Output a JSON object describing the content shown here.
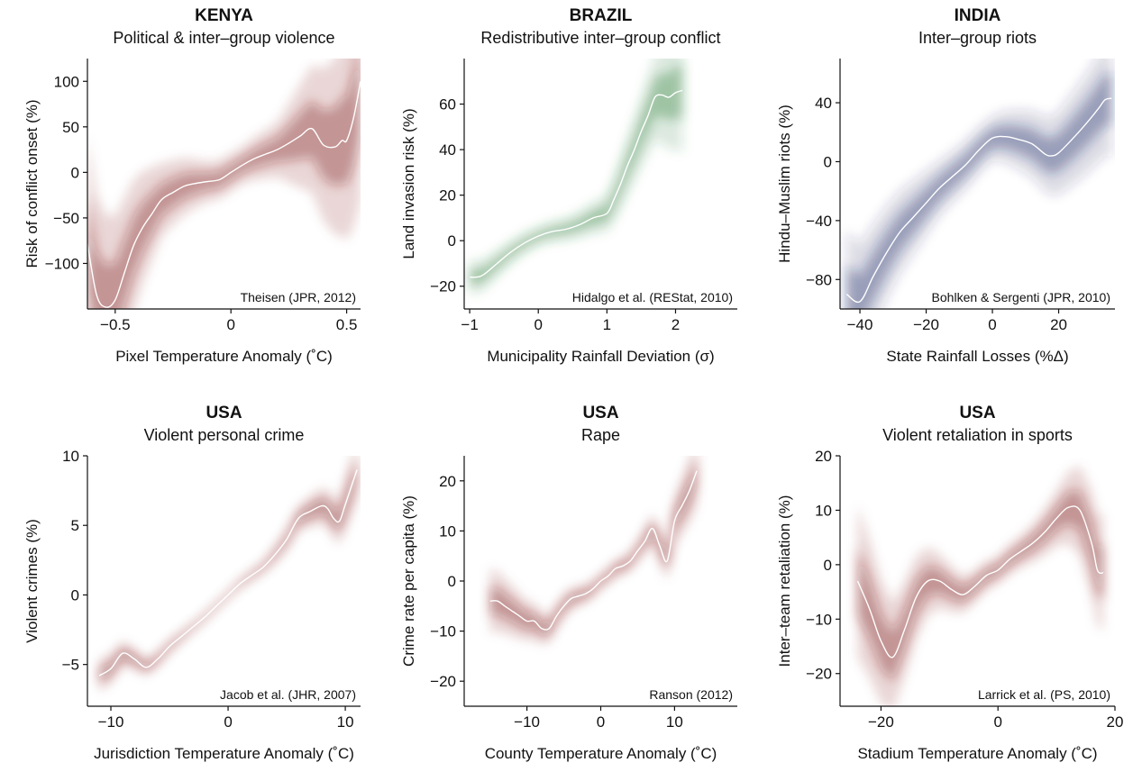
{
  "chart_data": [
    {
      "type": "line",
      "title": "KENYA",
      "subtitle": "Political & inter–group violence",
      "xlabel": "Pixel Temperature Anomaly (˚C)",
      "ylabel": "Risk of conflict onset (%)",
      "xlim": [
        -0.62,
        0.56
      ],
      "ylim": [
        -150,
        125
      ],
      "xticks": [
        -0.5,
        0,
        0.5
      ],
      "xtick_labels": [
        "−0.5",
        "0",
        "0.5"
      ],
      "yticks": [
        -100,
        -50,
        0,
        50,
        100
      ],
      "ytick_labels": [
        "−100",
        "−50",
        "0",
        "50",
        "100"
      ],
      "source": "Theisen (JPR, 2012)",
      "color": "#7a1a1a",
      "band_halfwidth": [
        [
          -0.62,
          120
        ],
        [
          -0.45,
          80
        ],
        [
          -0.3,
          40
        ],
        [
          -0.1,
          22
        ],
        [
          0.05,
          20
        ],
        [
          0.2,
          30
        ],
        [
          0.35,
          70
        ],
        [
          0.5,
          110
        ],
        [
          0.56,
          130
        ]
      ],
      "series": [
        {
          "x": [
            -0.62,
            -0.58,
            -0.54,
            -0.5,
            -0.46,
            -0.42,
            -0.38,
            -0.34,
            -0.3,
            -0.25,
            -0.2,
            -0.15,
            -0.1,
            -0.05,
            0,
            0.05,
            0.1,
            0.15,
            0.2,
            0.25,
            0.3,
            0.35,
            0.4,
            0.45,
            0.48,
            0.5,
            0.53,
            0.56
          ],
          "y": [
            -78,
            -135,
            -148,
            -140,
            -110,
            -80,
            -60,
            -45,
            -30,
            -22,
            -15,
            -12,
            -10,
            -8,
            0,
            8,
            15,
            20,
            25,
            32,
            40,
            48,
            30,
            28,
            35,
            35,
            60,
            100
          ]
        }
      ]
    },
    {
      "type": "line",
      "title": "BRAZIL",
      "subtitle": "Redistributive inter–group conflict",
      "xlabel": "Municipality Rainfall Deviation (σ)",
      "ylabel": "Land invasion risk (%)",
      "xlim": [
        -1.08,
        2.9
      ],
      "ylim": [
        -30,
        80
      ],
      "xticks": [
        -1,
        0,
        1,
        2
      ],
      "xtick_labels": [
        "−1",
        "0",
        "1",
        "2"
      ],
      "yticks": [
        -20,
        0,
        20,
        40,
        60
      ],
      "ytick_labels": [
        "−20",
        "0",
        "20",
        "40",
        "60"
      ],
      "source": "Hidalgo et al. (REStat, 2010)",
      "color": "#2d7a35",
      "band_halfwidth": [
        [
          -1.08,
          8
        ],
        [
          -0.5,
          5
        ],
        [
          0,
          4
        ],
        [
          0.5,
          5
        ],
        [
          1,
          8
        ],
        [
          1.5,
          15
        ],
        [
          2,
          25
        ],
        [
          2.2,
          30
        ]
      ],
      "series": [
        {
          "x": [
            -1.0,
            -0.9,
            -0.8,
            -0.6,
            -0.4,
            -0.2,
            0,
            0.2,
            0.4,
            0.6,
            0.8,
            1.0,
            1.1,
            1.2,
            1.3,
            1.4,
            1.5,
            1.6,
            1.7,
            1.8,
            1.9,
            2.0,
            2.1
          ],
          "y": [
            -16,
            -16,
            -15,
            -10,
            -5,
            -1,
            2,
            4,
            5,
            7,
            10,
            12,
            18,
            25,
            33,
            40,
            48,
            55,
            63,
            64,
            63,
            65,
            66
          ]
        }
      ]
    },
    {
      "type": "line",
      "title": "INDIA",
      "subtitle": "Inter–group riots",
      "xlabel": "State Rainfall Losses (%Δ)",
      "ylabel": "Hindu–Muslim riots (%)",
      "xlim": [
        -46,
        37
      ],
      "ylim": [
        -100,
        70
      ],
      "xticks": [
        -40,
        -20,
        0,
        20
      ],
      "xtick_labels": [
        "−40",
        "−20",
        "0",
        "20"
      ],
      "yticks": [
        -80,
        -40,
        0,
        40
      ],
      "ytick_labels": [
        "−80",
        "−40",
        "0",
        "40"
      ],
      "source": "Bohlken & Sergenti (JPR, 2010)",
      "color": "#1f2a66",
      "band_halfwidth": [
        [
          -46,
          45
        ],
        [
          -30,
          30
        ],
        [
          -15,
          18
        ],
        [
          0,
          15
        ],
        [
          15,
          25
        ],
        [
          25,
          32
        ],
        [
          37,
          40
        ]
      ],
      "series": [
        {
          "x": [
            -44,
            -40,
            -36,
            -32,
            -28,
            -24,
            -20,
            -16,
            -12,
            -8,
            -4,
            0,
            4,
            8,
            12,
            16,
            18,
            20,
            24,
            28,
            32,
            34,
            36
          ],
          "y": [
            -90,
            -95,
            -78,
            -62,
            -48,
            -38,
            -28,
            -18,
            -10,
            -2,
            8,
            16,
            17,
            15,
            12,
            5,
            4,
            6,
            15,
            25,
            36,
            42,
            43
          ]
        }
      ]
    },
    {
      "type": "line",
      "title": "USA",
      "subtitle": "Violent personal crime",
      "xlabel": "Jurisdiction Temperature Anomaly (˚C)",
      "ylabel": "Violent crimes (%)",
      "xlim": [
        -12,
        11.3
      ],
      "ylim": [
        -8,
        10
      ],
      "xticks": [
        -10,
        0,
        10
      ],
      "xtick_labels": [
        "−10",
        "0",
        "10"
      ],
      "yticks": [
        -5,
        0,
        5,
        10
      ],
      "ytick_labels": [
        "−5",
        "0",
        "5",
        "10"
      ],
      "source": "Jacob et al. (JHR, 2007)",
      "color": "#7a1a1a",
      "band_halfwidth": [
        [
          -11,
          1.2
        ],
        [
          -7,
          0.6
        ],
        [
          -3,
          0.3
        ],
        [
          0,
          0.25
        ],
        [
          3,
          0.4
        ],
        [
          6,
          0.9
        ],
        [
          9,
          1.5
        ],
        [
          11,
          2.2
        ]
      ],
      "series": [
        {
          "x": [
            -11,
            -10,
            -9,
            -8,
            -7,
            -6,
            -5,
            -4,
            -3,
            -2,
            -1,
            0,
            1,
            2,
            3,
            4,
            5,
            6,
            7,
            8,
            8.5,
            9,
            9.5,
            10,
            11
          ],
          "y": [
            -5.8,
            -5.3,
            -4.2,
            -4.6,
            -5.2,
            -4.6,
            -3.7,
            -3,
            -2.3,
            -1.6,
            -0.8,
            0,
            0.8,
            1.4,
            2,
            2.9,
            4,
            5.5,
            6,
            6.4,
            6.2,
            5.5,
            5.3,
            6.5,
            9
          ]
        }
      ]
    },
    {
      "type": "line",
      "title": "USA",
      "subtitle": "Rape",
      "xlabel": "County Temperature Anomaly (˚C)",
      "ylabel": "Crime rate per capita (%)",
      "xlim": [
        -18.5,
        18.5
      ],
      "ylim": [
        -25,
        25
      ],
      "xticks": [
        -10,
        0,
        10
      ],
      "xtick_labels": [
        "−10",
        "0",
        "10"
      ],
      "yticks": [
        -20,
        -10,
        0,
        10,
        20
      ],
      "ytick_labels": [
        "−20",
        "−10",
        "0",
        "10",
        "20"
      ],
      "source": "Ranson (2012)",
      "color": "#7a1a1a",
      "band_halfwidth": [
        [
          -16,
          7
        ],
        [
          -10,
          4
        ],
        [
          -6,
          2.5
        ],
        [
          0,
          1.5
        ],
        [
          5,
          2
        ],
        [
          9,
          4
        ],
        [
          13,
          7
        ],
        [
          15,
          9
        ]
      ],
      "series": [
        {
          "x": [
            -15,
            -14,
            -13,
            -12,
            -11,
            -10,
            -9,
            -8,
            -7,
            -6,
            -5,
            -4,
            -3,
            -2,
            -1,
            0,
            1,
            2,
            3,
            4,
            5,
            6,
            7,
            8,
            9,
            10,
            11,
            12,
            13
          ],
          "y": [
            -4,
            -4,
            -5,
            -6,
            -7,
            -8,
            -8,
            -9.5,
            -9.5,
            -7,
            -5,
            -3.5,
            -3,
            -2.5,
            -1.5,
            0,
            1,
            2.5,
            3,
            4,
            6,
            8,
            10.5,
            7,
            4,
            12,
            15,
            18,
            22
          ]
        }
      ]
    },
    {
      "type": "line",
      "title": "USA",
      "subtitle": "Violent retaliation in sports",
      "xlabel": "Stadium Temperature Anomaly (˚C)",
      "ylabel": "Inter–team retaliation (%)",
      "xlim": [
        -27,
        20
      ],
      "ylim": [
        -26,
        20
      ],
      "xticks": [
        -20,
        0,
        20
      ],
      "xtick_labels": [
        "−20",
        "0",
        "20"
      ],
      "yticks": [
        -20,
        -10,
        0,
        10,
        20
      ],
      "ytick_labels": [
        "−20",
        "−10",
        "0",
        "10",
        "20"
      ],
      "source": "Larrick et al. (PS, 2010)",
      "color": "#7a1a1a",
      "band_halfwidth": [
        [
          -27,
          16
        ],
        [
          -18,
          10
        ],
        [
          -10,
          5
        ],
        [
          -5,
          3
        ],
        [
          0,
          2.5
        ],
        [
          5,
          3
        ],
        [
          10,
          5
        ],
        [
          15,
          9
        ],
        [
          20,
          12
        ]
      ],
      "series": [
        {
          "x": [
            -24,
            -22,
            -20,
            -18,
            -16,
            -14,
            -12,
            -10,
            -8,
            -6,
            -4,
            -2,
            0,
            2,
            4,
            6,
            8,
            10,
            12,
            14,
            16,
            17,
            18
          ],
          "y": [
            -3,
            -8,
            -14,
            -17,
            -12,
            -6,
            -3,
            -3,
            -4.5,
            -5.5,
            -4,
            -2,
            -1,
            1,
            2.5,
            4,
            6,
            8.5,
            10.5,
            10,
            4,
            -1,
            -1.5
          ]
        }
      ]
    }
  ]
}
